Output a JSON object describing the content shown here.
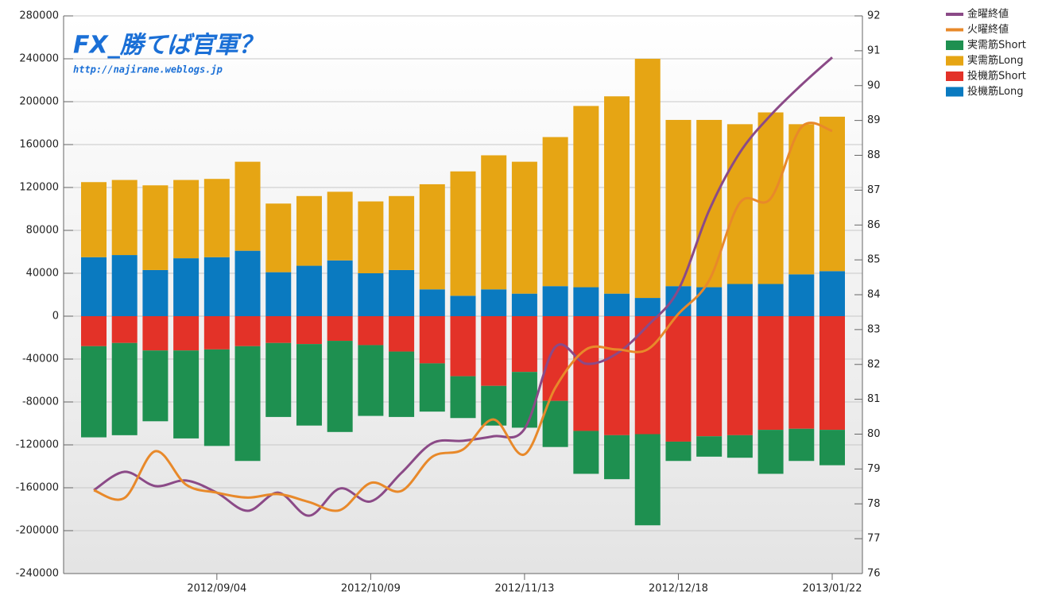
{
  "chart_data": {
    "type": "bar",
    "watermark_title": "FX_勝てば官軍？",
    "watermark_url": "http://najirane.weblogs.jp",
    "categories": [
      null,
      null,
      null,
      null,
      "2012/09/04",
      null,
      null,
      null,
      null,
      "2012/10/09",
      null,
      null,
      null,
      null,
      "2012/11/13",
      null,
      null,
      null,
      null,
      "2012/12/18",
      null,
      null,
      null,
      null,
      "2013/01/22"
    ],
    "ylim": [
      -240000,
      280000
    ],
    "yticks": [
      -240000,
      -200000,
      -160000,
      -120000,
      -80000,
      -40000,
      0,
      40000,
      80000,
      120000,
      160000,
      200000,
      240000,
      280000
    ],
    "y2lim": [
      76,
      92
    ],
    "y2ticks": [
      76,
      77,
      78,
      79,
      80,
      81,
      82,
      83,
      84,
      85,
      86,
      87,
      88,
      89,
      90,
      91,
      92
    ],
    "grid": true,
    "series": [
      {
        "name": "金曜終値",
        "type": "line",
        "axis": "y2",
        "color": "#8b4a87",
        "values": [
          78.39,
          78.92,
          78.51,
          78.67,
          78.32,
          77.8,
          78.32,
          77.66,
          78.44,
          78.07,
          78.89,
          79.74,
          79.81,
          79.94,
          80.15,
          82.5,
          82.02,
          82.31,
          83.11,
          84.14,
          86.42,
          88.08,
          89.15,
          90.02,
          90.81
        ]
      },
      {
        "name": "火曜終値",
        "type": "line",
        "axis": "y2",
        "color": "#e8892a",
        "values": [
          78.39,
          78.17,
          79.51,
          78.55,
          78.32,
          78.18,
          78.28,
          78.05,
          77.82,
          78.6,
          78.37,
          79.35,
          79.56,
          80.42,
          79.42,
          81.33,
          82.43,
          82.43,
          82.43,
          83.45,
          84.41,
          86.64,
          86.76,
          88.81,
          88.7
        ]
      },
      {
        "name": "実需筋Short",
        "type": "bar",
        "color": "#1e9050",
        "values": [
          -85000,
          -86000,
          -66000,
          -82000,
          -90000,
          -107000,
          -69000,
          -76000,
          -85000,
          -66000,
          -61000,
          -45000,
          -39000,
          -37000,
          -52000,
          -43000,
          -40000,
          -41000,
          -85000,
          -18000,
          -19000,
          -21000,
          -41000,
          -30000,
          -33000
        ]
      },
      {
        "name": "実需筋Long",
        "type": "bar",
        "color": "#e6a514",
        "values": [
          70000,
          70000,
          79000,
          73000,
          73000,
          83000,
          64000,
          65000,
          64000,
          67000,
          69000,
          98000,
          116000,
          125000,
          123000,
          139000,
          169000,
          184000,
          223000,
          155000,
          156000,
          149000,
          160000,
          140000,
          144000
        ]
      },
      {
        "name": "投機筋Short",
        "type": "bar",
        "color": "#e33228",
        "values": [
          -28000,
          -25000,
          -32000,
          -32000,
          -31000,
          -28000,
          -25000,
          -26000,
          -23000,
          -27000,
          -33000,
          -44000,
          -56000,
          -65000,
          -52000,
          -79000,
          -107000,
          -111000,
          -110000,
          -117000,
          -112000,
          -111000,
          -106000,
          -105000,
          -106000
        ]
      },
      {
        "name": "投機筋Long",
        "type": "bar",
        "color": "#0a7ac0",
        "values": [
          55000,
          57000,
          43000,
          54000,
          55000,
          61000,
          41000,
          47000,
          52000,
          40000,
          43000,
          25000,
          19000,
          25000,
          21000,
          28000,
          27000,
          21000,
          17000,
          28000,
          27000,
          30000,
          30000,
          39000,
          42000
        ]
      }
    ]
  }
}
